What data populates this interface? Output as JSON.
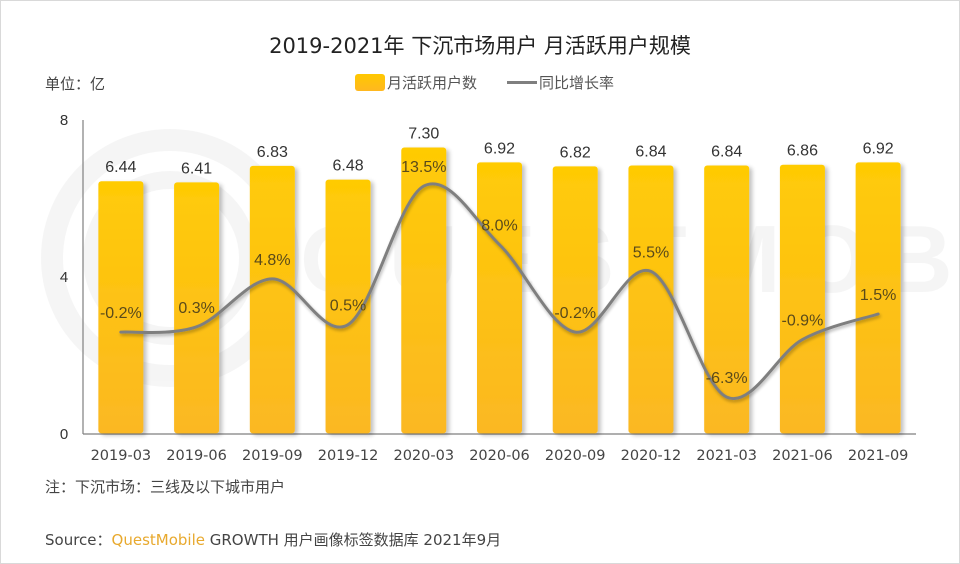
{
  "title": "2019-2021年 下沉市场用户 月活跃用户规模",
  "unit_label": "单位：亿",
  "legend": {
    "bar_label": "月活跃用户数",
    "line_label": "同比增长率"
  },
  "note": "注：下沉市场：三线及以下城市用户",
  "source": {
    "prefix": "Source：",
    "brand": "QuestMobile",
    "text": "GROWTH 用户画像标签数据库 2021年9月"
  },
  "watermark": "QUESTMOBILE",
  "colors": {
    "bar_top": "#ffcb05",
    "bar_bottom": "#fbb823",
    "line": "#7f7f7f",
    "brand": "#e8a92e"
  },
  "chart_data": {
    "type": "bar",
    "title": "2019-2021年 下沉市场用户 月活跃用户规模",
    "xlabel": "",
    "ylabel": "单位：亿",
    "ylim": [
      0,
      8
    ],
    "yticks": [
      "0",
      "4",
      "8"
    ],
    "categories": [
      "2019-03",
      "2019-06",
      "2019-09",
      "2019-12",
      "2020-03",
      "2020-06",
      "2020-09",
      "2020-12",
      "2021-03",
      "2021-06",
      "2021-09"
    ],
    "series": [
      {
        "name": "月活跃用户数",
        "type": "bar",
        "values": [
          6.44,
          6.41,
          6.83,
          6.48,
          7.3,
          6.92,
          6.82,
          6.84,
          6.84,
          6.86,
          6.92
        ],
        "labels": [
          "6.44",
          "6.41",
          "6.83",
          "6.48",
          "7.30",
          "6.92",
          "6.82",
          "6.84",
          "6.84",
          "6.86",
          "6.92"
        ]
      },
      {
        "name": "同比增长率",
        "type": "line",
        "smooth": true,
        "unit": "%",
        "values": [
          -0.2,
          0.3,
          4.8,
          0.5,
          13.5,
          8.0,
          -0.2,
          5.5,
          -6.3,
          -0.9,
          1.5
        ],
        "labels": [
          "-0.2%",
          "0.3%",
          "4.8%",
          "0.5%",
          "13.5%",
          "8.0%",
          "-0.2%",
          "5.5%",
          "-6.3%",
          "-0.9%",
          "1.5%"
        ]
      }
    ],
    "legend_position": "top-center",
    "grid": false
  }
}
